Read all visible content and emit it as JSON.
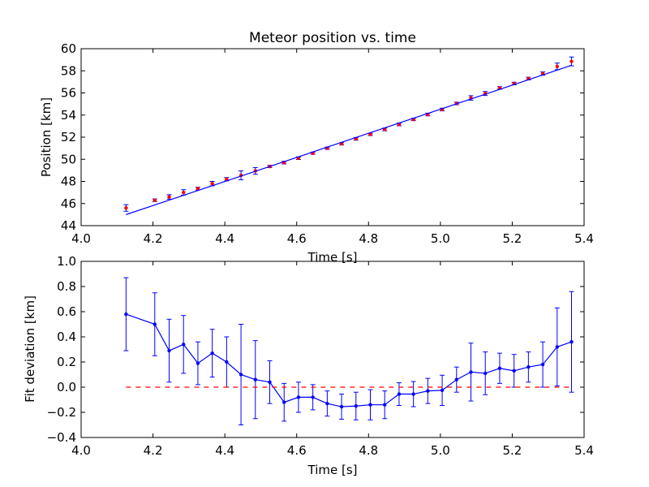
{
  "chart_data": [
    {
      "type": "scatter",
      "title": "Meteor position vs. time",
      "xlabel": "Time [s]",
      "ylabel": "Position [km]",
      "xlim": [
        4.0,
        5.4
      ],
      "ylim": [
        44,
        60
      ],
      "xticks": [
        "4.0",
        "4.2",
        "4.4",
        "4.6",
        "4.8",
        "5.0",
        "5.2",
        "5.4"
      ],
      "yticks": [
        "44",
        "46",
        "48",
        "50",
        "52",
        "54",
        "56",
        "58",
        "60"
      ],
      "series": [
        {
          "style": "red-points-errorbars",
          "color": "#ff0000",
          "x": [
            4.125,
            4.205,
            4.245,
            4.285,
            4.325,
            4.365,
            4.405,
            4.445,
            4.485,
            4.525,
            4.565,
            4.605,
            4.645,
            4.685,
            4.725,
            4.765,
            4.805,
            4.845,
            4.885,
            4.925,
            4.965,
            5.005,
            5.045,
            5.085,
            5.125,
            5.165,
            5.205,
            5.245,
            5.285,
            5.325,
            5.365
          ],
          "y": [
            45.6,
            46.3,
            46.6,
            47.0,
            47.35,
            47.8,
            48.2,
            48.55,
            48.95,
            49.35,
            49.7,
            50.1,
            50.55,
            51.0,
            51.4,
            51.85,
            52.25,
            52.7,
            53.15,
            53.6,
            54.05,
            54.5,
            55.05,
            55.55,
            55.95,
            56.45,
            56.85,
            57.3,
            57.75,
            58.4,
            58.85
          ],
          "yerr": [
            0.3,
            0.12,
            0.2,
            0.25,
            0.12,
            0.2,
            0.15,
            0.4,
            0.3,
            0.1,
            0.12,
            0.12,
            0.1,
            0.1,
            0.1,
            0.12,
            0.1,
            0.12,
            0.12,
            0.1,
            0.12,
            0.12,
            0.12,
            0.2,
            0.18,
            0.12,
            0.12,
            0.12,
            0.15,
            0.3,
            0.4
          ]
        },
        {
          "style": "blue-fit-line",
          "color": "#0000ff",
          "x": [
            4.125,
            5.365
          ],
          "y": [
            45.0,
            58.5
          ]
        }
      ]
    },
    {
      "type": "line",
      "xlabel": "Time [s]",
      "ylabel": "Fit deviation [km]",
      "xlim": [
        4.0,
        5.4
      ],
      "ylim": [
        -0.4,
        1.0
      ],
      "xticks": [
        "4.0",
        "4.2",
        "4.4",
        "4.6",
        "4.8",
        "5.0",
        "5.2",
        "5.4"
      ],
      "yticks": [
        "−0.4",
        "−0.2",
        "0.0",
        "0.2",
        "0.4",
        "0.6",
        "0.8",
        "1.0"
      ],
      "series": [
        {
          "style": "blue-line-errorbars",
          "color": "#0000ff",
          "x": [
            4.125,
            4.205,
            4.245,
            4.285,
            4.325,
            4.365,
            4.405,
            4.445,
            4.485,
            4.525,
            4.565,
            4.605,
            4.645,
            4.685,
            4.725,
            4.765,
            4.805,
            4.845,
            4.885,
            4.925,
            4.965,
            5.005,
            5.045,
            5.085,
            5.125,
            5.165,
            5.205,
            5.245,
            5.285,
            5.325,
            5.365
          ],
          "y": [
            0.58,
            0.5,
            0.29,
            0.34,
            0.19,
            0.27,
            0.2,
            0.1,
            0.06,
            0.04,
            -0.12,
            -0.08,
            -0.08,
            -0.13,
            -0.155,
            -0.15,
            -0.14,
            -0.14,
            -0.055,
            -0.055,
            -0.03,
            -0.025,
            0.06,
            0.12,
            0.11,
            0.15,
            0.13,
            0.16,
            0.18,
            0.32,
            0.36
          ],
          "yerr": [
            0.29,
            0.25,
            0.25,
            0.23,
            0.17,
            0.19,
            0.2,
            0.4,
            0.31,
            0.17,
            0.15,
            0.12,
            0.1,
            0.1,
            0.1,
            0.11,
            0.12,
            0.11,
            0.09,
            0.1,
            0.1,
            0.12,
            0.1,
            0.23,
            0.17,
            0.12,
            0.13,
            0.12,
            0.18,
            0.31,
            0.4
          ]
        },
        {
          "style": "red-dashed-zero-line",
          "color": "#ff0000",
          "x": [
            4.125,
            5.365
          ],
          "y": [
            0.0,
            0.0
          ]
        }
      ]
    }
  ]
}
